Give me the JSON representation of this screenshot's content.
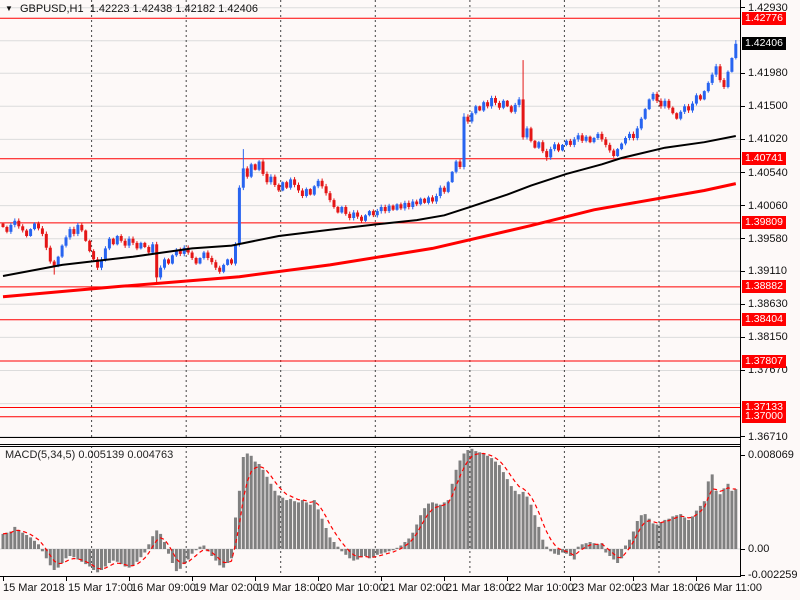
{
  "window": {
    "symbol": "GBPUSD,H1",
    "ohlc_open": "1.42223",
    "ohlc_high": "1.42438",
    "ohlc_low": "1.42182",
    "ohlc_close": "1.42406"
  },
  "colors": {
    "background": "#FDF9F8",
    "candle_up": "#2864F0",
    "candle_down": "#E41616",
    "level_line_red": "#FF0000",
    "ma_black": "#000000",
    "ma_red": "#FF0000",
    "macd_hist": "#808080",
    "macd_signal": "#FF0000",
    "grid": "#DCDCDC",
    "separator": "#444444",
    "badge_red_bg": "#FF0000",
    "badge_black_bg": "#000000"
  },
  "price_axis": {
    "tick_labels": [
      "1.42930",
      "1.41980",
      "1.41500",
      "1.41020",
      "1.40540",
      "1.40060",
      "1.39580",
      "1.39110",
      "1.38630",
      "1.38150",
      "1.37670",
      "1.36710"
    ],
    "tick_values": [
      1.4293,
      1.4198,
      1.415,
      1.4102,
      1.4054,
      1.4006,
      1.3958,
      1.3911,
      1.3863,
      1.3815,
      1.3767,
      1.3671
    ],
    "red_badges": [
      "1.42776",
      "1.40741",
      "1.39809",
      "1.38882",
      "1.38404",
      "1.37807",
      "1.37133",
      "1.37000"
    ],
    "red_badge_values": [
      1.42776,
      1.40741,
      1.39809,
      1.38882,
      1.38404,
      1.37807,
      1.37133,
      1.37
    ],
    "current_badge": "1.42406",
    "current_badge_value": 1.42406
  },
  "macd_panel": {
    "label": "MACD(5,34,5)",
    "macd_value": "0.005139",
    "signal_value": "0.004763",
    "axis_ticks": [
      "0.008069",
      "0.00",
      "-0.002259"
    ],
    "axis_tick_values": [
      0.008069,
      0,
      -0.002259
    ]
  },
  "chart_data": {
    "type": "candlestick",
    "symbol": "GBPUSD",
    "timeframe": "H1",
    "title": "GBPUSD,H1 1.42223 1.42438 1.42182 1.42406",
    "current_bar": {
      "open": 1.42223,
      "high": 1.42438,
      "low": 1.42182,
      "close": 1.42406
    },
    "y_axis": {
      "top_price": 1.4293,
      "bottom_price": 1.3671,
      "tick_step": 0.0048
    },
    "grid_levels": [
      1.4293,
      1.4245,
      1.4198,
      1.415,
      1.4102,
      1.4054,
      1.4006,
      1.3958,
      1.3911,
      1.3863,
      1.3815,
      1.3767,
      1.3719,
      1.3671
    ],
    "horizontal_levels": [
      1.42776,
      1.40741,
      1.39809,
      1.38882,
      1.38404,
      1.37807,
      1.37133,
      1.37
    ],
    "time_labels": [
      "15 Mar 2018",
      "15 Mar 17:00",
      "16 Mar 09:00",
      "19 Mar 02:00",
      "19 Mar 18:00",
      "20 Mar 10:00",
      "21 Mar 02:00",
      "21 Mar 18:00",
      "22 Mar 10:00",
      "23 Mar 02:00",
      "23 Mar 18:00",
      "26 Mar 11:00"
    ],
    "bars_per_time_tick": 16,
    "day_separator_bars": [
      23,
      47,
      71,
      95,
      119,
      143,
      167
    ],
    "candles": {
      "first_open": 1.398,
      "wick_pad": 0.00035,
      "closes": [
        1.3975,
        1.3968,
        1.3978,
        1.3984,
        1.3976,
        1.397,
        1.3962,
        1.3972,
        1.398,
        1.3973,
        1.3965,
        1.3945,
        1.3925,
        1.3918,
        1.3932,
        1.3948,
        1.396,
        1.3972,
        1.3965,
        1.3978,
        1.397,
        1.3955,
        1.394,
        1.3928,
        1.3916,
        1.3928,
        1.3944,
        1.3958,
        1.395,
        1.3962,
        1.3955,
        1.3948,
        1.3958,
        1.3952,
        1.3944,
        1.3952,
        1.3946,
        1.3938,
        1.395,
        1.3902,
        1.3916,
        1.3928,
        1.3922,
        1.3934,
        1.3942,
        1.3936,
        1.3945,
        1.3938,
        1.393,
        1.3922,
        1.393,
        1.3938,
        1.393,
        1.3924,
        1.3916,
        1.391,
        1.392,
        1.3928,
        1.3922,
        1.395,
        1.4032,
        1.406,
        1.4048,
        1.4066,
        1.4058,
        1.407,
        1.4052,
        1.404,
        1.4048,
        1.4036,
        1.4028,
        1.404,
        1.4032,
        1.4044,
        1.4036,
        1.4028,
        1.402,
        1.403,
        1.4022,
        1.4034,
        1.4042,
        1.4034,
        1.4024,
        1.4014,
        1.4004,
        1.3996,
        1.4004,
        1.3994,
        1.3988,
        1.3996,
        1.399,
        1.3984,
        1.3992,
        1.3998,
        1.3992,
        1.3998,
        1.4004,
        1.3998,
        1.4006,
        1.4,
        1.4008,
        1.4002,
        1.401,
        1.4004,
        1.4012,
        1.4008,
        1.4016,
        1.401,
        1.4018,
        1.4012,
        1.402,
        1.4032,
        1.4026,
        1.404,
        1.4055,
        1.407,
        1.4062,
        1.4135,
        1.4128,
        1.414,
        1.415,
        1.4144,
        1.4156,
        1.415,
        1.4162,
        1.4155,
        1.4148,
        1.4158,
        1.415,
        1.4142,
        1.4152,
        1.416,
        1.4105,
        1.4118,
        1.41,
        1.409,
        1.4098,
        1.4085,
        1.4076,
        1.4088,
        1.4095,
        1.4086,
        1.4094,
        1.41,
        1.4094,
        1.4102,
        1.4108,
        1.41,
        1.4106,
        1.4098,
        1.4104,
        1.411,
        1.4102,
        1.4094,
        1.4086,
        1.4078,
        1.4088,
        1.4096,
        1.4104,
        1.411,
        1.4104,
        1.4118,
        1.4132,
        1.4146,
        1.416,
        1.4168,
        1.4158,
        1.415,
        1.4158,
        1.4148,
        1.414,
        1.4132,
        1.4142,
        1.415,
        1.4144,
        1.4154,
        1.4166,
        1.416,
        1.4172,
        1.4184,
        1.4196,
        1.4208,
        1.4188,
        1.4178,
        1.42,
        1.422,
        1.42406
      ],
      "spikes": [
        {
          "i": 13,
          "low": 1.3906
        },
        {
          "i": 39,
          "low": 1.3893
        },
        {
          "i": 61,
          "high": 1.4088
        },
        {
          "i": 117,
          "high": 1.414
        },
        {
          "i": 132,
          "high": 1.4217
        },
        {
          "i": 138,
          "low": 1.4071
        },
        {
          "i": 186,
          "high": 1.4246
        }
      ]
    },
    "ma_black_anchors": [
      [
        0,
        1.3904
      ],
      [
        15,
        1.392
      ],
      [
        33,
        1.3932
      ],
      [
        48,
        1.3944
      ],
      [
        58,
        1.3948
      ],
      [
        70,
        1.3962
      ],
      [
        83,
        1.3971
      ],
      [
        95,
        1.3979
      ],
      [
        105,
        1.3985
      ],
      [
        112,
        1.3992
      ],
      [
        118,
        1.4003
      ],
      [
        128,
        1.4022
      ],
      [
        134,
        1.4035
      ],
      [
        143,
        1.4052
      ],
      [
        152,
        1.4066
      ],
      [
        157,
        1.4075
      ],
      [
        168,
        1.409
      ],
      [
        178,
        1.4098
      ],
      [
        186,
        1.4107
      ]
    ],
    "ma_red_anchors": [
      [
        0,
        1.3874
      ],
      [
        30,
        1.3889
      ],
      [
        60,
        1.3903
      ],
      [
        83,
        1.392
      ],
      [
        109,
        1.3944
      ],
      [
        134,
        1.3977
      ],
      [
        150,
        1.4
      ],
      [
        160,
        1.401
      ],
      [
        170,
        1.402
      ],
      [
        178,
        1.4028
      ],
      [
        186,
        1.4038
      ]
    ],
    "macd": {
      "current_macd": 0.005139,
      "current_signal": 0.004763,
      "signal_smoothing": 0.38,
      "values": [
        0.0013,
        0.0014,
        0.0015,
        0.0019,
        0.0016,
        0.0014,
        0.0012,
        0.001,
        0.0007,
        0.0004,
        -0.0002,
        -0.0008,
        -0.0014,
        -0.0018,
        -0.0016,
        -0.0012,
        -0.0008,
        -0.0006,
        -0.0007,
        -0.0009,
        -0.0011,
        -0.0013,
        -0.0015,
        -0.0018,
        -0.002,
        -0.0018,
        -0.0015,
        -0.0012,
        -0.001,
        -0.0011,
        -0.0013,
        -0.0015,
        -0.0016,
        -0.0014,
        -0.0011,
        -0.0007,
        -0.0003,
        0.0004,
        0.0011,
        0.0016,
        0.0013,
        0.0006,
        -0.0004,
        -0.0012,
        -0.0019,
        -0.0017,
        -0.0013,
        -0.0009,
        -0.0004,
        -0.0001,
        0.0002,
        0.0003,
        -0.0002,
        -0.0006,
        -0.001,
        -0.0014,
        -0.0016,
        -0.0012,
        -0.0008,
        0.0027,
        0.005,
        0.0079,
        0.0082,
        0.008,
        0.0075,
        0.0073,
        0.0068,
        0.0062,
        0.0056,
        0.005,
        0.0046,
        0.0044,
        0.0042,
        0.0043,
        0.0041,
        0.004,
        0.0042,
        0.004,
        0.0038,
        0.0042,
        0.0034,
        0.0026,
        0.0018,
        0.001,
        0.0006,
        0.0002,
        -0.0002,
        -0.0005,
        -0.0008,
        -0.001,
        -0.0009,
        -0.0007,
        -0.0006,
        -0.0008,
        -0.0007,
        -0.0005,
        -0.0004,
        -0.0003,
        -0.0002,
        -0.0001,
        0.0001,
        0.0003,
        0.0006,
        0.0009,
        0.0014,
        0.0021,
        0.0029,
        0.0035,
        0.0039,
        0.004,
        0.0039,
        0.0038,
        0.004,
        0.0042,
        0.0056,
        0.0068,
        0.0076,
        0.0082,
        0.0085,
        0.0086,
        0.0084,
        0.0083,
        0.0082,
        0.008,
        0.0078,
        0.0075,
        0.0072,
        0.0066,
        0.006,
        0.0054,
        0.005,
        0.0047,
        0.0049,
        0.0045,
        0.0038,
        0.0029,
        0.0019,
        0.0008,
        0.0002,
        -0.0002,
        -0.0004,
        -0.0005,
        -0.0003,
        -0.0004,
        -0.0006,
        -0.0009,
        0.0002,
        0.0004,
        0.0005,
        0.0006,
        0.0005,
        0.0004,
        0.0005,
        -0.0003,
        -0.0006,
        -0.0009,
        -0.0012,
        -0.0008,
        0.0003,
        0.0008,
        0.0015,
        0.0024,
        0.0029,
        0.003,
        0.0026,
        0.0022,
        0.0021,
        0.0023,
        0.0025,
        0.0026,
        0.0028,
        0.0029,
        0.003,
        0.0027,
        0.0025,
        0.0028,
        0.0033,
        0.0037,
        0.0041,
        0.0058,
        0.0064,
        0.005,
        0.0047,
        0.0052,
        0.0056,
        0.005,
        0.005139
      ]
    }
  }
}
